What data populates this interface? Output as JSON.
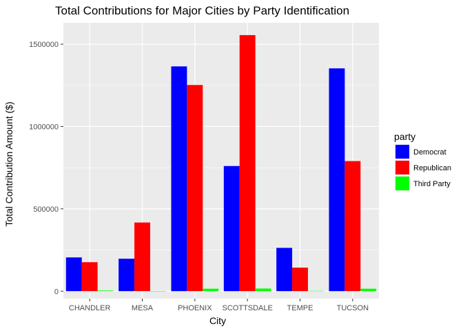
{
  "chart_data": {
    "type": "bar",
    "title": "Total Contributions for Major Cities by Party Identification",
    "xlabel": "City",
    "ylabel": "Total Contribution Amount ($)",
    "categories": [
      "CHANDLER",
      "MESA",
      "PHOENIX",
      "SCOTTSDALE",
      "TEMPE",
      "TUCSON"
    ],
    "series": [
      {
        "name": "Democrat",
        "color": "#0000ff",
        "values": [
          205000,
          197000,
          1365000,
          760000,
          263000,
          1353000
        ]
      },
      {
        "name": "Republican",
        "color": "#ff0000",
        "values": [
          176000,
          417000,
          1252000,
          1555000,
          143000,
          790000
        ]
      },
      {
        "name": "Third Party",
        "color": "#00ff00",
        "values": [
          4000,
          1000,
          15000,
          16000,
          2000,
          15000
        ]
      }
    ],
    "ylim": [
      -45000,
      1630000
    ],
    "yticks": [
      0,
      500000,
      1000000,
      1500000
    ],
    "ytick_labels": [
      "0",
      "500000",
      "1000000",
      "1500000"
    ],
    "legend": {
      "title": "party",
      "position": "right"
    },
    "grid": true,
    "panel_color": "#ebebeb"
  }
}
